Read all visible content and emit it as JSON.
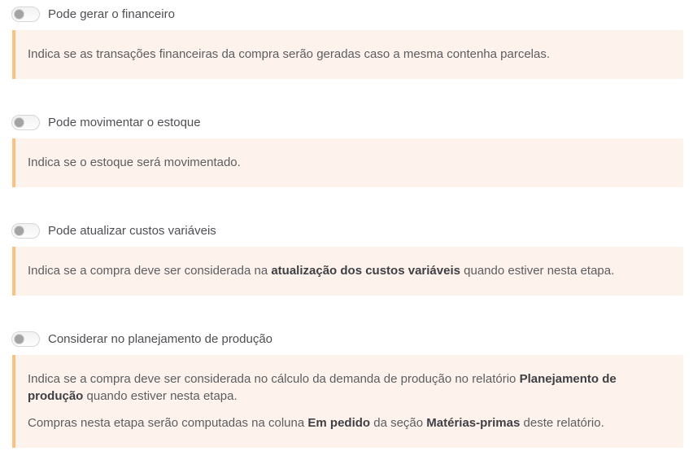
{
  "colors": {
    "info_box_background": "#fdf3ec",
    "info_box_border": "#f9c27e",
    "label_text": "#4e4f53",
    "info_text": "#5c5d61",
    "info_text_bold": "#3f4045",
    "toggle_border": "#d6d6d6",
    "toggle_knob": "#a3a3a3"
  },
  "sections": [
    {
      "label": "Pode gerar o financeiro",
      "toggle_state": "off",
      "info": [
        [
          "Indica se as transações financeiras da compra serão geradas caso a mesma contenha parcelas."
        ]
      ]
    },
    {
      "label": "Pode movimentar o estoque",
      "toggle_state": "off",
      "info": [
        [
          "Indica se o estoque será movimentado."
        ]
      ]
    },
    {
      "label": "Pode atualizar custos variáveis",
      "toggle_state": "off",
      "info": [
        [
          "Indica se a compra deve ser considerada na ",
          "atualização dos custos variáveis",
          " quando estiver nesta etapa."
        ]
      ]
    },
    {
      "label": "Considerar no planejamento de produção",
      "toggle_state": "off",
      "info": [
        [
          "Indica se a compra deve ser considerada no cálculo da demanda de produção no relatório ",
          "Planejamento de produção",
          " quando estiver nesta etapa."
        ],
        [
          "Compras nesta etapa serão computadas na coluna ",
          "Em pedido",
          " da seção ",
          "Matérias-primas",
          " deste relatório."
        ]
      ]
    }
  ]
}
